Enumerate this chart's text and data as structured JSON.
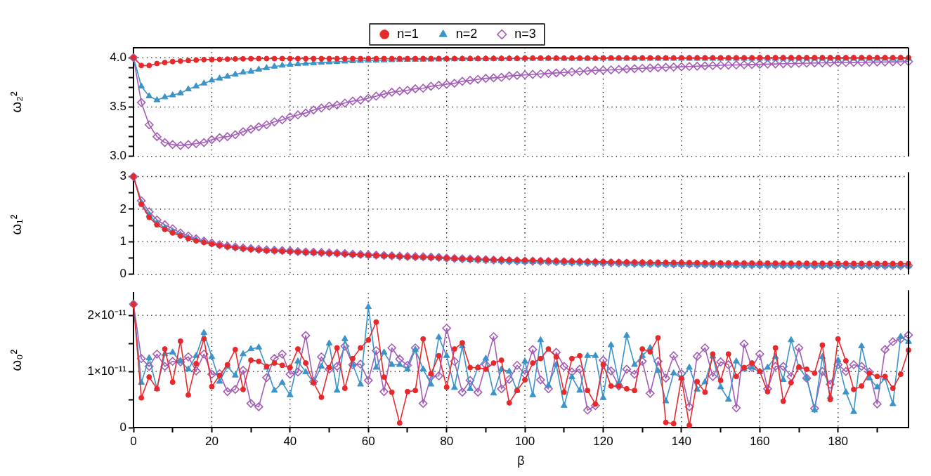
{
  "chart_data": [
    {
      "type": "line",
      "ylabel": "ω₂²",
      "legend": "top",
      "grid": true,
      "tick_labels": "y",
      "xlim": [
        0,
        198
      ],
      "xticks": [
        0,
        20,
        40,
        60,
        80,
        100,
        120,
        140,
        160,
        180
      ],
      "ylim": [
        3,
        4.1
      ],
      "yticks": [
        {
          "value": 3,
          "label": "3.0"
        },
        {
          "value": 3.1,
          "label": null
        },
        {
          "value": 3.2,
          "label": null
        },
        {
          "value": 3.3,
          "label": null
        },
        {
          "value": 3.4,
          "label": null
        },
        {
          "value": 3.5,
          "label": "3.5"
        },
        {
          "value": 3.6,
          "label": null
        },
        {
          "value": 3.7,
          "label": null
        },
        {
          "value": 3.8,
          "label": null
        },
        {
          "value": 3.9,
          "label": null
        },
        {
          "value": 4,
          "label": "4.0"
        }
      ],
      "x": [
        0,
        2,
        4,
        6,
        8,
        10,
        12,
        14,
        16,
        18,
        20,
        22,
        24,
        26,
        28,
        30,
        32,
        34,
        36,
        38,
        40,
        42,
        44,
        46,
        48,
        50,
        52,
        54,
        56,
        58,
        60,
        62,
        64,
        66,
        68,
        70,
        72,
        74,
        76,
        78,
        80,
        82,
        84,
        86,
        88,
        90,
        92,
        94,
        96,
        98,
        100,
        102,
        104,
        106,
        108,
        110,
        112,
        114,
        116,
        118,
        120,
        122,
        124,
        126,
        128,
        130,
        132,
        134,
        136,
        138,
        140,
        142,
        144,
        146,
        148,
        150,
        152,
        154,
        156,
        158,
        160,
        162,
        164,
        166,
        168,
        170,
        172,
        174,
        176,
        178,
        180,
        182,
        184,
        186,
        188,
        190,
        192,
        194,
        196,
        198
      ],
      "series": [
        {
          "name": "n=1",
          "color": "#e8292c",
          "marker": "circle",
          "values": [
            4.0,
            3.92,
            3.92,
            3.94,
            3.95,
            3.96,
            3.965,
            3.97,
            3.975,
            3.98,
            3.98,
            3.982,
            3.985,
            3.987,
            3.988,
            3.989,
            3.99,
            3.99,
            3.99,
            3.99,
            3.99,
            3.99,
            3.99,
            3.99,
            3.99,
            3.99,
            3.99,
            3.99,
            3.99,
            3.99,
            3.99,
            3.99,
            3.99,
            3.99,
            3.99,
            3.99,
            3.99,
            3.99,
            3.99,
            3.99,
            3.99,
            3.99,
            3.99,
            3.99,
            3.99,
            3.991,
            3.991,
            3.992,
            3.992,
            3.992,
            3.995,
            3.995,
            3.995,
            3.995,
            3.995,
            3.995,
            3.995,
            3.995,
            3.995,
            3.995,
            3.997,
            3.997,
            3.997,
            3.997,
            3.997,
            3.997,
            3.997,
            3.997,
            3.997,
            3.997,
            3.998,
            3.998,
            3.998,
            3.998,
            3.998,
            3.998,
            3.998,
            3.998,
            3.998,
            3.998,
            4.0,
            4.0,
            4.0,
            4.0,
            4.0,
            4.0,
            4.0,
            4.0,
            4.0,
            4.0,
            4.0,
            4.0,
            4.0,
            4.0,
            4.0,
            4.0,
            4.0,
            4.0,
            4.0,
            4.0
          ]
        },
        {
          "name": "n=2",
          "color": "#3a94c9",
          "marker": "triangle",
          "values": [
            4.0,
            3.71,
            3.61,
            3.57,
            3.6,
            3.62,
            3.64,
            3.68,
            3.71,
            3.74,
            3.77,
            3.79,
            3.81,
            3.83,
            3.85,
            3.86,
            3.88,
            3.895,
            3.91,
            3.92,
            3.93,
            3.935,
            3.94,
            3.945,
            3.95,
            3.954,
            3.958,
            3.962,
            3.965,
            3.968,
            3.97,
            3.972,
            3.974,
            3.976,
            3.978,
            3.979,
            3.98,
            3.981,
            3.982,
            3.983,
            3.984,
            3.985,
            3.986,
            3.987,
            3.988,
            3.988,
            3.989,
            3.989,
            3.99,
            3.99,
            3.99,
            3.99,
            3.99,
            3.99,
            3.99,
            3.99,
            3.99,
            3.99,
            3.99,
            3.99,
            3.99,
            3.99,
            3.99,
            3.99,
            3.99,
            3.99,
            3.99,
            3.99,
            3.99,
            3.99,
            3.99,
            3.99,
            3.99,
            3.99,
            3.99,
            3.99,
            3.99,
            3.99,
            3.99,
            3.99,
            3.99,
            3.99,
            3.99,
            3.99,
            3.99,
            3.99,
            3.99,
            3.99,
            3.99,
            3.99,
            3.99,
            3.99,
            3.99,
            3.99,
            3.99,
            3.99,
            3.99,
            3.99,
            3.99,
            3.99
          ]
        },
        {
          "name": "n=3",
          "color": "#a35db7",
          "marker": "diamond",
          "values": [
            4.0,
            3.545,
            3.32,
            3.2,
            3.14,
            3.12,
            3.11,
            3.12,
            3.13,
            3.14,
            3.17,
            3.19,
            3.2,
            3.22,
            3.25,
            3.275,
            3.3,
            3.32,
            3.35,
            3.37,
            3.4,
            3.42,
            3.44,
            3.47,
            3.49,
            3.51,
            3.52,
            3.54,
            3.56,
            3.57,
            3.59,
            3.61,
            3.63,
            3.65,
            3.66,
            3.67,
            3.685,
            3.69,
            3.71,
            3.72,
            3.73,
            3.74,
            3.76,
            3.77,
            3.78,
            3.79,
            3.795,
            3.8,
            3.815,
            3.82,
            3.825,
            3.83,
            3.835,
            3.84,
            3.845,
            3.85,
            3.855,
            3.86,
            3.865,
            3.87,
            3.873,
            3.876,
            3.88,
            3.884,
            3.888,
            3.892,
            3.895,
            3.898,
            3.901,
            3.904,
            3.907,
            3.91,
            3.913,
            3.916,
            3.919,
            3.922,
            3.924,
            3.926,
            3.928,
            3.93,
            3.932,
            3.934,
            3.936,
            3.938,
            3.94,
            3.942,
            3.944,
            3.946,
            3.947,
            3.948,
            3.95,
            3.951,
            3.952,
            3.953,
            3.954,
            3.955,
            3.956,
            3.957,
            3.958,
            3.96
          ]
        }
      ]
    },
    {
      "type": "line",
      "ylabel": "ω₁²",
      "grid": true,
      "tick_labels": "y",
      "xlim": [
        0,
        198
      ],
      "xticks": [
        0,
        20,
        40,
        60,
        80,
        100,
        120,
        140,
        160,
        180
      ],
      "ylim": [
        0,
        3.05
      ],
      "yticks": [
        0,
        {
          "value": 0.5,
          "label": null
        },
        1,
        {
          "value": 1.5,
          "label": null
        },
        2,
        {
          "value": 2.5,
          "label": null
        },
        3
      ],
      "x": [
        0,
        2,
        4,
        6,
        8,
        10,
        12,
        14,
        16,
        18,
        20,
        22,
        24,
        26,
        28,
        30,
        32,
        34,
        36,
        38,
        40,
        42,
        44,
        46,
        48,
        50,
        52,
        54,
        56,
        58,
        60,
        62,
        64,
        66,
        68,
        70,
        72,
        74,
        76,
        78,
        80,
        82,
        84,
        86,
        88,
        90,
        92,
        94,
        96,
        98,
        100,
        102,
        104,
        106,
        108,
        110,
        112,
        114,
        116,
        118,
        120,
        122,
        124,
        126,
        128,
        130,
        132,
        134,
        136,
        138,
        140,
        142,
        144,
        146,
        148,
        150,
        152,
        154,
        156,
        158,
        160,
        162,
        164,
        166,
        168,
        170,
        172,
        174,
        176,
        178,
        180,
        182,
        184,
        186,
        188,
        190,
        192,
        194,
        196,
        198
      ],
      "series": [
        {
          "color": "#e8292c",
          "marker": "circle",
          "values": [
            3.0,
            2.15,
            1.75,
            1.52,
            1.38,
            1.27,
            1.18,
            1.1,
            1.03,
            0.98,
            0.93,
            0.89,
            0.85,
            0.82,
            0.79,
            0.77,
            0.75,
            0.73,
            0.72,
            0.71,
            0.7,
            0.69,
            0.68,
            0.67,
            0.66,
            0.65,
            0.64,
            0.62,
            0.61,
            0.6,
            0.59,
            0.58,
            0.57,
            0.56,
            0.55,
            0.54,
            0.535,
            0.53,
            0.52,
            0.51,
            0.5,
            0.49,
            0.48,
            0.47,
            0.465,
            0.46,
            0.455,
            0.45,
            0.445,
            0.44,
            0.435,
            0.43,
            0.425,
            0.42,
            0.415,
            0.41,
            0.405,
            0.4,
            0.396,
            0.392,
            0.388,
            0.385,
            0.382,
            0.379,
            0.376,
            0.373,
            0.37,
            0.368,
            0.366,
            0.364,
            0.362,
            0.36,
            0.358,
            0.356,
            0.354,
            0.352,
            0.35,
            0.349,
            0.348,
            0.347,
            0.346,
            0.345,
            0.344,
            0.343,
            0.342,
            0.341,
            0.34,
            0.339,
            0.338,
            0.337,
            0.336,
            0.335,
            0.334,
            0.334,
            0.333,
            0.333,
            0.332,
            0.332,
            0.331,
            0.33
          ]
        },
        {
          "color": "#3a94c9",
          "marker": "triangle",
          "values": [
            3.0,
            2.2,
            1.82,
            1.58,
            1.43,
            1.32,
            1.22,
            1.13,
            1.06,
            1.0,
            0.94,
            0.89,
            0.85,
            0.82,
            0.79,
            0.77,
            0.75,
            0.73,
            0.72,
            0.71,
            0.7,
            0.68,
            0.67,
            0.66,
            0.65,
            0.64,
            0.63,
            0.62,
            0.6,
            0.59,
            0.58,
            0.57,
            0.56,
            0.55,
            0.54,
            0.53,
            0.525,
            0.52,
            0.51,
            0.5,
            0.48,
            0.47,
            0.46,
            0.45,
            0.44,
            0.43,
            0.42,
            0.41,
            0.4,
            0.395,
            0.39,
            0.385,
            0.38,
            0.375,
            0.37,
            0.365,
            0.36,
            0.355,
            0.35,
            0.345,
            0.34,
            0.335,
            0.33,
            0.325,
            0.32,
            0.316,
            0.313,
            0.31,
            0.306,
            0.303,
            0.3,
            0.296,
            0.293,
            0.29,
            0.286,
            0.283,
            0.28,
            0.278,
            0.276,
            0.274,
            0.272,
            0.27,
            0.268,
            0.266,
            0.264,
            0.262,
            0.26,
            0.259,
            0.258,
            0.257,
            0.256,
            0.255,
            0.254,
            0.253,
            0.252,
            0.252,
            0.251,
            0.251,
            0.25,
            0.25
          ]
        },
        {
          "color": "#a35db7",
          "marker": "diamond",
          "values": [
            3.0,
            2.26,
            1.92,
            1.67,
            1.52,
            1.4,
            1.27,
            1.18,
            1.09,
            1.02,
            0.96,
            0.91,
            0.87,
            0.84,
            0.81,
            0.79,
            0.77,
            0.75,
            0.74,
            0.73,
            0.72,
            0.7,
            0.69,
            0.68,
            0.67,
            0.66,
            0.65,
            0.64,
            0.62,
            0.61,
            0.6,
            0.59,
            0.58,
            0.57,
            0.56,
            0.55,
            0.545,
            0.54,
            0.53,
            0.52,
            0.5,
            0.49,
            0.48,
            0.47,
            0.46,
            0.45,
            0.44,
            0.43,
            0.42,
            0.415,
            0.41,
            0.405,
            0.4,
            0.395,
            0.39,
            0.385,
            0.38,
            0.375,
            0.37,
            0.365,
            0.36,
            0.355,
            0.35,
            0.345,
            0.34,
            0.336,
            0.333,
            0.33,
            0.326,
            0.323,
            0.32,
            0.316,
            0.313,
            0.31,
            0.306,
            0.303,
            0.3,
            0.298,
            0.296,
            0.294,
            0.292,
            0.29,
            0.288,
            0.286,
            0.284,
            0.282,
            0.28,
            0.279,
            0.278,
            0.277,
            0.276,
            0.275,
            0.274,
            0.273,
            0.272,
            0.272,
            0.271,
            0.271,
            0.27,
            0.27
          ]
        }
      ]
    },
    {
      "type": "line",
      "ylabel": "ω₀²",
      "xlabel": "β",
      "grid": true,
      "xlim": [
        0,
        198
      ],
      "xticks": [
        0,
        {
          "value": 10,
          "label": null
        },
        20,
        {
          "value": 30,
          "label": null
        },
        40,
        {
          "value": 50,
          "label": null
        },
        60,
        {
          "value": 70,
          "label": null
        },
        80,
        {
          "value": 90,
          "label": null
        },
        100,
        {
          "value": 110,
          "label": null
        },
        120,
        {
          "value": 130,
          "label": null
        },
        140,
        {
          "value": 150,
          "label": null
        },
        160,
        {
          "value": 170,
          "label": null
        },
        180,
        {
          "value": 190,
          "label": null
        }
      ],
      "ylim": [
        0,
        2.4e-11
      ],
      "yticks": [
        0,
        {
          "value": 5e-12,
          "label": null
        },
        {
          "value": 1e-11,
          "label": "1×10⁻¹¹"
        },
        {
          "value": 1.5e-11,
          "label": null
        },
        {
          "value": 2e-11,
          "label": "2×10⁻¹¹"
        }
      ],
      "x": [
        0,
        2,
        4,
        6,
        8,
        10,
        12,
        14,
        16,
        18,
        20,
        22,
        24,
        26,
        28,
        30,
        32,
        34,
        36,
        38,
        40,
        42,
        44,
        46,
        48,
        50,
        52,
        54,
        56,
        58,
        60,
        62,
        64,
        66,
        68,
        70,
        72,
        74,
        76,
        78,
        80,
        82,
        84,
        86,
        88,
        90,
        92,
        94,
        96,
        98,
        100,
        102,
        104,
        106,
        108,
        110,
        112,
        114,
        116,
        118,
        120,
        122,
        124,
        126,
        128,
        130,
        132,
        134,
        136,
        138,
        140,
        142,
        144,
        146,
        148,
        150,
        152,
        154,
        156,
        158,
        160,
        162,
        164,
        166,
        168,
        170,
        172,
        174,
        176,
        178,
        180,
        182,
        184,
        186,
        188,
        190,
        192,
        194,
        196,
        198
      ],
      "series": [
        {
          "color": "#e8292c",
          "marker": "circle",
          "values": [
            2.2e-11,
            5.3e-12,
            9e-12,
            6.9e-12,
            1.4e-11,
            8.1e-12,
            1.54e-11,
            5.8e-12,
            1.14e-11,
            1.58e-11,
            7.3e-12,
            9.3e-12,
            1.12e-11,
            1.39e-11,
            6.8e-12,
            1.2e-11,
            1.18e-11,
            1.09e-11,
            1.15e-11,
            1.11e-11,
            1.07e-11,
            1.4e-11,
            1.15e-11,
            8e-12,
            5.4e-12,
            1.07e-11,
            1.42e-11,
            7e-12,
            1.23e-11,
            1.42e-11,
            1.56e-11,
            1.88e-11,
            9e-12,
            6.3e-12,
            8e-13,
            6.4e-12,
            6.6e-12,
            1.58e-11,
            9.6e-12,
            1.28e-11,
            7.2e-12,
            1.4e-11,
            1.51e-11,
            1.07e-11,
            1.07e-11,
            1.04e-11,
            1.15e-11,
            1.2e-11,
            4.4e-12,
            6.6e-12,
            8.5e-12,
            1.15e-11,
            1.23e-11,
            1.4e-11,
            1.26e-11,
            6.3e-12,
            1.23e-11,
            1.28e-11,
            6.6e-12,
            4.2e-12,
            1.12e-11,
            7.4e-12,
            7.4e-12,
            6.9e-12,
            6.6e-12,
            1.4e-11,
            1.35e-11,
            1.6e-11,
            9e-13,
            7e-13,
            8.8e-12,
            4e-13,
            8.2e-12,
            6.3e-12,
            1.31e-11,
            8.4e-12,
            1.31e-11,
            9.1e-12,
            1.07e-11,
            1.15e-11,
            1e-11,
            6.4e-12,
            1.42e-11,
            4.7e-12,
            8e-12,
            1.08e-11,
            1.04e-11,
            9.7e-12,
            1.47e-11,
            5e-12,
            1.58e-11,
            1.19e-11,
            6.8e-12,
            7.4e-12,
            9.7e-12,
            9.1e-12,
            9.1e-12,
            7e-12,
            9.5e-12,
            1.38e-11
          ]
        },
        {
          "color": "#3a94c9",
          "marker": "triangle",
          "values": [
            2.2e-11,
            8e-12,
            1.24e-11,
            6.9e-12,
            1.31e-11,
            1.34e-11,
            1.18e-11,
            1.04e-11,
            1.28e-11,
            1.69e-11,
            1.26e-11,
            8.2e-12,
            1.09e-11,
            9.3e-12,
            1.31e-11,
            1.4e-11,
            1.43e-11,
            1.07e-11,
            6.6e-12,
            8e-12,
            5.8e-12,
            1.18e-11,
            9.9e-12,
            8e-12,
            1.09e-11,
            1.5e-11,
            6.6e-12,
            1.58e-11,
            1.12e-11,
            7.7e-12,
            2.15e-11,
            1.07e-11,
            1.34e-11,
            1.12e-11,
            1.12e-11,
            1.04e-11,
            1.39e-11,
            1.04e-11,
            7.7e-12,
            1.61e-11,
            1.28e-11,
            7.1e-12,
            1.45e-11,
            6.9e-12,
            1.07e-11,
            1.23e-11,
            6.1e-12,
            1.04e-11,
            1e-11,
            6.6e-12,
            1.18e-11,
            5.8e-12,
            1.56e-11,
            7.5e-12,
            1.12e-11,
            3.9e-12,
            9e-12,
            6.6e-12,
            1.28e-11,
            1.28e-11,
            5.3e-12,
            1.47e-11,
            8e-12,
            1.64e-11,
            1.12e-11,
            1.28e-11,
            1.42e-11,
            1.01e-11,
            4.7e-12,
            9.7e-12,
            8.8e-12,
            1.07e-11,
            6.8e-12,
            8.1e-12,
            1.27e-11,
            7.2e-12,
            5e-12,
            1.18e-11,
            1.04e-11,
            1.07e-11,
            9.9e-12,
            1.07e-11,
            1.26e-11,
            8.5e-12,
            1.56e-11,
            1.07e-11,
            8.8e-12,
            3.1e-12,
            1.26e-11,
            5.5e-12,
            1.2e-11,
            6.3e-12,
            2.8e-12,
            1.45e-11,
            8.8e-12,
            7.2e-12,
            8.8e-12,
            4.2e-12,
            1.62e-11,
            1.53e-11
          ]
        },
        {
          "color": "#a35db7",
          "marker": "diamond",
          "values": [
            2.2e-11,
            1.23e-11,
            1.09e-11,
            1.31e-11,
            1.09e-11,
            1.18e-11,
            1.17e-11,
            1.26e-11,
            1.01e-11,
            1.31e-11,
            9.5e-12,
            9.6e-12,
            6.4e-12,
            6.8e-12,
            1.02e-11,
            4.3e-12,
            3.7e-12,
            8.9e-12,
            1.23e-11,
            1.31e-11,
            9.5e-12,
            9.9e-12,
            1.64e-11,
            8.2e-12,
            1.26e-11,
            1.04e-11,
            1.09e-11,
            1.45e-11,
            1.12e-11,
            1.13e-11,
            8.4e-12,
            1.37e-11,
            6.4e-12,
            1.42e-11,
            1.22e-11,
            1.11e-11,
            1.42e-11,
            4.3e-12,
            9.1e-12,
            9.2e-12,
            1.77e-11,
            1.18e-11,
            6.3e-12,
            8.4e-12,
            6.3e-12,
            1.12e-11,
            1.62e-11,
            6.9e-12,
            8.6e-12,
            1.11e-11,
            9.5e-12,
            1.39e-11,
            8.5e-12,
            6.9e-12,
            1.34e-11,
            1.09e-11,
            9.9e-12,
            1.04e-11,
            3.1e-12,
            3.9e-12,
            1.2e-11,
            1.01e-11,
            7.4e-12,
            1.04e-11,
            9.5e-12,
            1.18e-11,
            6.1e-12,
            1.18e-11,
            8.8e-12,
            1.28e-11,
            9.6e-12,
            3.7e-12,
            1.27e-11,
            1.42e-11,
            9.1e-12,
            1.17e-11,
            1.12e-11,
            3.5e-12,
            1.49e-11,
            1.07e-11,
            1.31e-11,
            6.9e-12,
            1.09e-11,
            1.09e-11,
            9.1e-12,
            1.42e-11,
            8.8e-12,
            3.4e-12,
            1e-11,
            7.7e-12,
            1.12e-11,
            1e-11,
            1.12e-11,
            1.09e-11,
            9.9e-12,
            4.2e-12,
            1.39e-11,
            1.53e-11,
            1.58e-11,
            1.65e-11
          ]
        }
      ]
    }
  ]
}
